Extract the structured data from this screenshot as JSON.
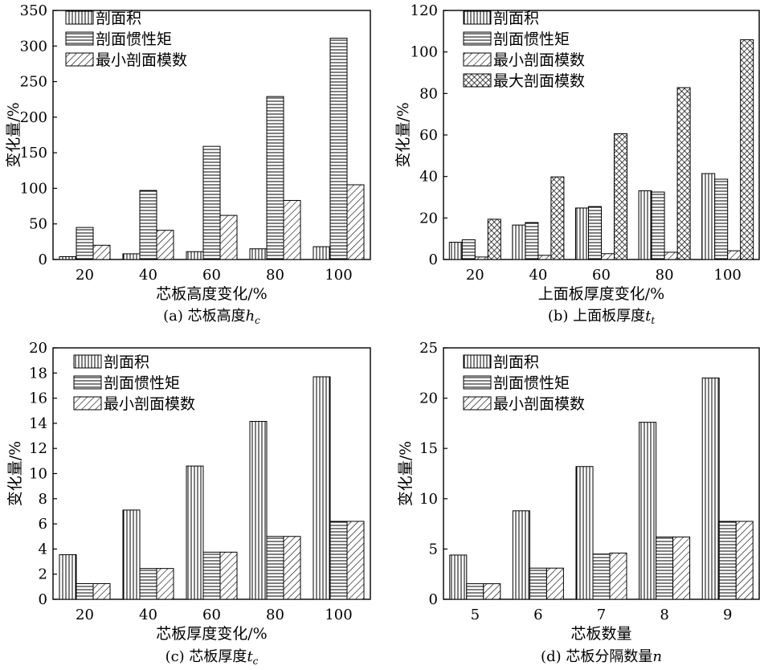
{
  "colors": {
    "ink": "#000000",
    "fill": "#ffffff"
  },
  "chart_data": [
    {
      "type": "bar",
      "title": "",
      "caption": {
        "prefix": "(a) 芯板高度",
        "sym": "h",
        "sub": "c"
      },
      "xlabel": "芯板高度变化/%",
      "ylabel": "变化量/%",
      "ylim": [
        0,
        350
      ],
      "yticks": [
        "0",
        "50",
        "100",
        "150",
        "200",
        "250",
        "300",
        "350"
      ],
      "categories": [
        "20",
        "40",
        "60",
        "80",
        "100"
      ],
      "legend_position": "top-left",
      "series": [
        {
          "name": "剖面积",
          "pattern": "vertical-lines",
          "values": [
            4,
            8,
            11,
            15,
            18
          ]
        },
        {
          "name": "剖面惯性矩",
          "pattern": "horizontal-lines",
          "values": [
            45,
            97,
            159,
            229,
            311
          ]
        },
        {
          "name": "最小剖面模数",
          "pattern": "diagonal-lines",
          "values": [
            20,
            41,
            62,
            83,
            105
          ]
        }
      ]
    },
    {
      "type": "bar",
      "title": "",
      "caption": {
        "prefix": "(b) 上面板厚度",
        "sym": "t",
        "sub": "t"
      },
      "xlabel": "上面板厚度变化/%",
      "ylabel": "变化量/%",
      "ylim": [
        0,
        120
      ],
      "yticks": [
        "0",
        "20",
        "40",
        "60",
        "80",
        "100",
        "120"
      ],
      "categories": [
        "20",
        "40",
        "60",
        "80",
        "100"
      ],
      "legend_position": "top-left",
      "series": [
        {
          "name": "剖面积",
          "pattern": "vertical-lines",
          "values": [
            8.3,
            16.6,
            24.8,
            33.1,
            41.4
          ]
        },
        {
          "name": "剖面惯性矩",
          "pattern": "horizontal-lines",
          "values": [
            9.5,
            17.8,
            25.5,
            32.5,
            38.7
          ]
        },
        {
          "name": "最小剖面模数",
          "pattern": "diagonal-lines",
          "values": [
            1.2,
            2,
            2.8,
            3.5,
            4.2
          ]
        },
        {
          "name": "最大剖面模数",
          "pattern": "crosshatch",
          "values": [
            19.4,
            39.8,
            60.6,
            82.8,
            105.9
          ]
        }
      ]
    },
    {
      "type": "bar",
      "title": "",
      "caption": {
        "prefix": "(c) 芯板厚度",
        "sym": "t",
        "sub": "c"
      },
      "xlabel": "芯板厚度变化/%",
      "ylabel": "变化量/%",
      "ylim": [
        0,
        20
      ],
      "yticks": [
        "0",
        "2",
        "4",
        "6",
        "8",
        "10",
        "12",
        "14",
        "16",
        "18",
        "20"
      ],
      "categories": [
        "20",
        "40",
        "60",
        "80",
        "100"
      ],
      "legend_position": "top-left",
      "series": [
        {
          "name": "剖面积",
          "pattern": "vertical-lines",
          "values": [
            3.55,
            7.1,
            10.6,
            14.15,
            17.7
          ]
        },
        {
          "name": "剖面惯性矩",
          "pattern": "horizontal-lines",
          "values": [
            1.25,
            2.45,
            3.75,
            5.0,
            6.2
          ]
        },
        {
          "name": "最小剖面模数",
          "pattern": "diagonal-lines",
          "values": [
            1.25,
            2.45,
            3.75,
            5.0,
            6.2
          ]
        }
      ]
    },
    {
      "type": "bar",
      "title": "",
      "caption": {
        "prefix": "(d) 芯板分隔数量",
        "sym": "n",
        "sub": ""
      },
      "xlabel": "芯板数量",
      "ylabel": "变化量/%",
      "ylim": [
        0,
        25
      ],
      "yticks": [
        "0",
        "5",
        "10",
        "15",
        "20",
        "25"
      ],
      "categories": [
        "5",
        "6",
        "7",
        "8",
        "9"
      ],
      "legend_position": "top-left",
      "series": [
        {
          "name": "剖面积",
          "pattern": "vertical-lines",
          "values": [
            4.4,
            8.8,
            13.2,
            17.6,
            22.0
          ]
        },
        {
          "name": "剖面惯性矩",
          "pattern": "horizontal-lines",
          "values": [
            1.55,
            3.1,
            4.5,
            6.2,
            7.75
          ]
        },
        {
          "name": "最小剖面模数",
          "pattern": "diagonal-lines",
          "values": [
            1.55,
            3.1,
            4.6,
            6.2,
            7.75
          ]
        }
      ]
    }
  ]
}
